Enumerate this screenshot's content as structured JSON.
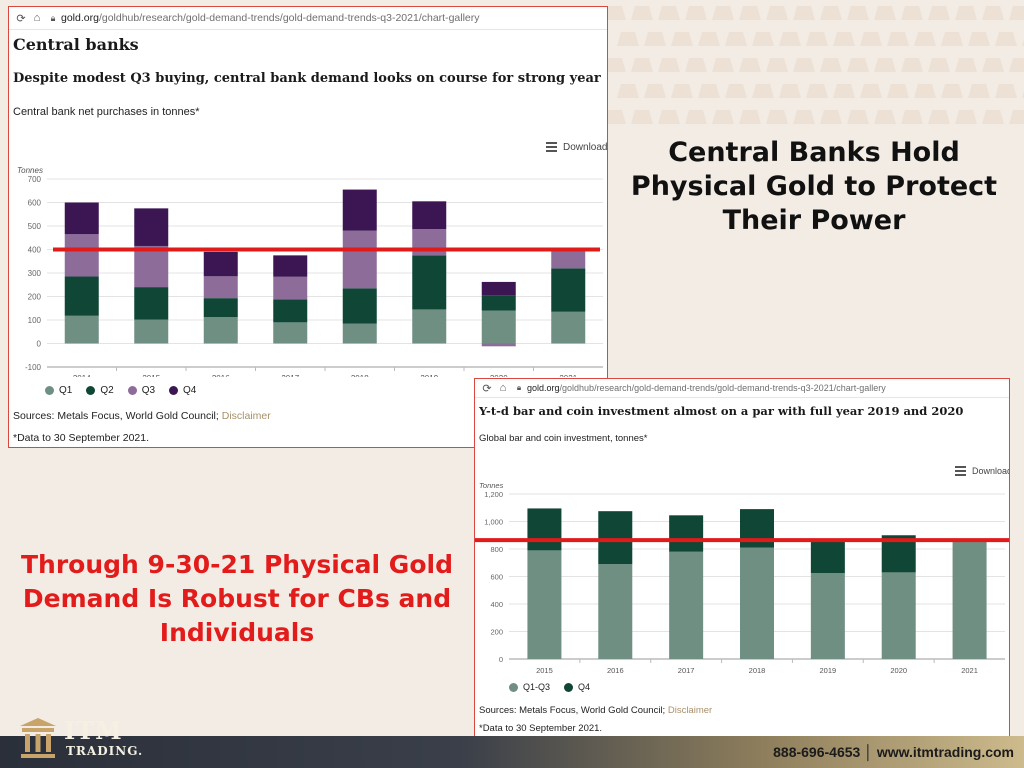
{
  "colors": {
    "background": "#f3ece5",
    "q1": "#6f8f83",
    "q2": "#0f4636",
    "q3": "#8d6c9a",
    "q4": "#3b1652",
    "q1q3": "#6f8f83",
    "q4_bar": "#0f4636",
    "red_line": "#e11a1a",
    "headline_red": "#e21b1b"
  },
  "panel_a": {
    "url_host": "gold.org",
    "url_path": "/goldhub/research/gold-demand-trends/gold-demand-trends-q3-2021/chart-gallery",
    "title": "Central banks",
    "subtitle": "Despite modest Q3 buying, central bank demand looks on course for strong year",
    "caption": "Central bank net purchases in tonnes*",
    "download_label": "Download",
    "legend": [
      "Q1",
      "Q2",
      "Q3",
      "Q4"
    ],
    "sources_text": "Sources: Metals Focus, World Gold Council;",
    "disclaimer": "Disclaimer",
    "footnote": "*Data to 30 September 2021."
  },
  "panel_b": {
    "url_host": "gold.org",
    "url_path": "/goldhub/research/gold-demand-trends/gold-demand-trends-q3-2021/chart-gallery",
    "subtitle": "Y-t-d bar and coin investment almost on a par with full year 2019 and 2020",
    "caption": "Global bar and coin investment, tonnes*",
    "download_label": "Download",
    "legend": [
      "Q1-Q3",
      "Q4"
    ],
    "sources_text": "Sources: Metals Focus, World Gold Council;",
    "disclaimer": "Disclaimer",
    "footnote": "*Data to 30 September 2021."
  },
  "headline_right": "Central Banks Hold Physical Gold to Protect Their Power",
  "headline_left": "Through 9-30-21 Physical Gold Demand Is Robust for CBs and Individuals",
  "footer": {
    "logo_word1": "ITM",
    "logo_word2": "TRADING.",
    "contact": "888-696-4653 │ www.itmtrading.com"
  },
  "chart_data": [
    {
      "type": "bar",
      "stacked": true,
      "ylabel": "Tonnes",
      "ylim": [
        -100,
        700
      ],
      "yticks": [
        -100,
        0,
        100,
        200,
        300,
        400,
        500,
        600,
        700
      ],
      "categories": [
        "2014",
        "2015",
        "2016",
        "2017",
        "2018",
        "2019",
        "2020",
        "2021"
      ],
      "series": [
        {
          "name": "Q1",
          "values": [
            118,
            102,
            112,
            90,
            85,
            145,
            140,
            135
          ]
        },
        {
          "name": "Q2",
          "values": [
            167,
            138,
            81,
            98,
            150,
            230,
            65,
            185
          ]
        },
        {
          "name": "Q3",
          "values": [
            180,
            175,
            93,
            96,
            245,
            112,
            0,
            75
          ]
        },
        {
          "name": "Q4",
          "values": [
            135,
            160,
            104,
            91,
            175,
            118,
            57,
            0
          ]
        }
      ],
      "extra_negative": {
        "category": "2020",
        "value": -12
      },
      "reference_line": {
        "value": 400,
        "color": "#e11a1a"
      },
      "grid": true,
      "legend_position": "bottom-left"
    },
    {
      "type": "bar",
      "stacked": true,
      "ylabel": "Tonnes",
      "ylim": [
        0,
        1200
      ],
      "yticks": [
        0,
        200,
        400,
        600,
        800,
        "1,000",
        "1,200"
      ],
      "categories": [
        "2015",
        "2016",
        "2017",
        "2018",
        "2019",
        "2020",
        "2021"
      ],
      "series": [
        {
          "name": "Q1-Q3",
          "values": [
            790,
            690,
            780,
            810,
            625,
            630,
            860
          ]
        },
        {
          "name": "Q4",
          "values": [
            305,
            385,
            265,
            280,
            245,
            270,
            0
          ]
        }
      ],
      "reference_line": {
        "value": 865,
        "color": "#e11a1a"
      },
      "grid": true,
      "legend_position": "bottom-left"
    }
  ]
}
